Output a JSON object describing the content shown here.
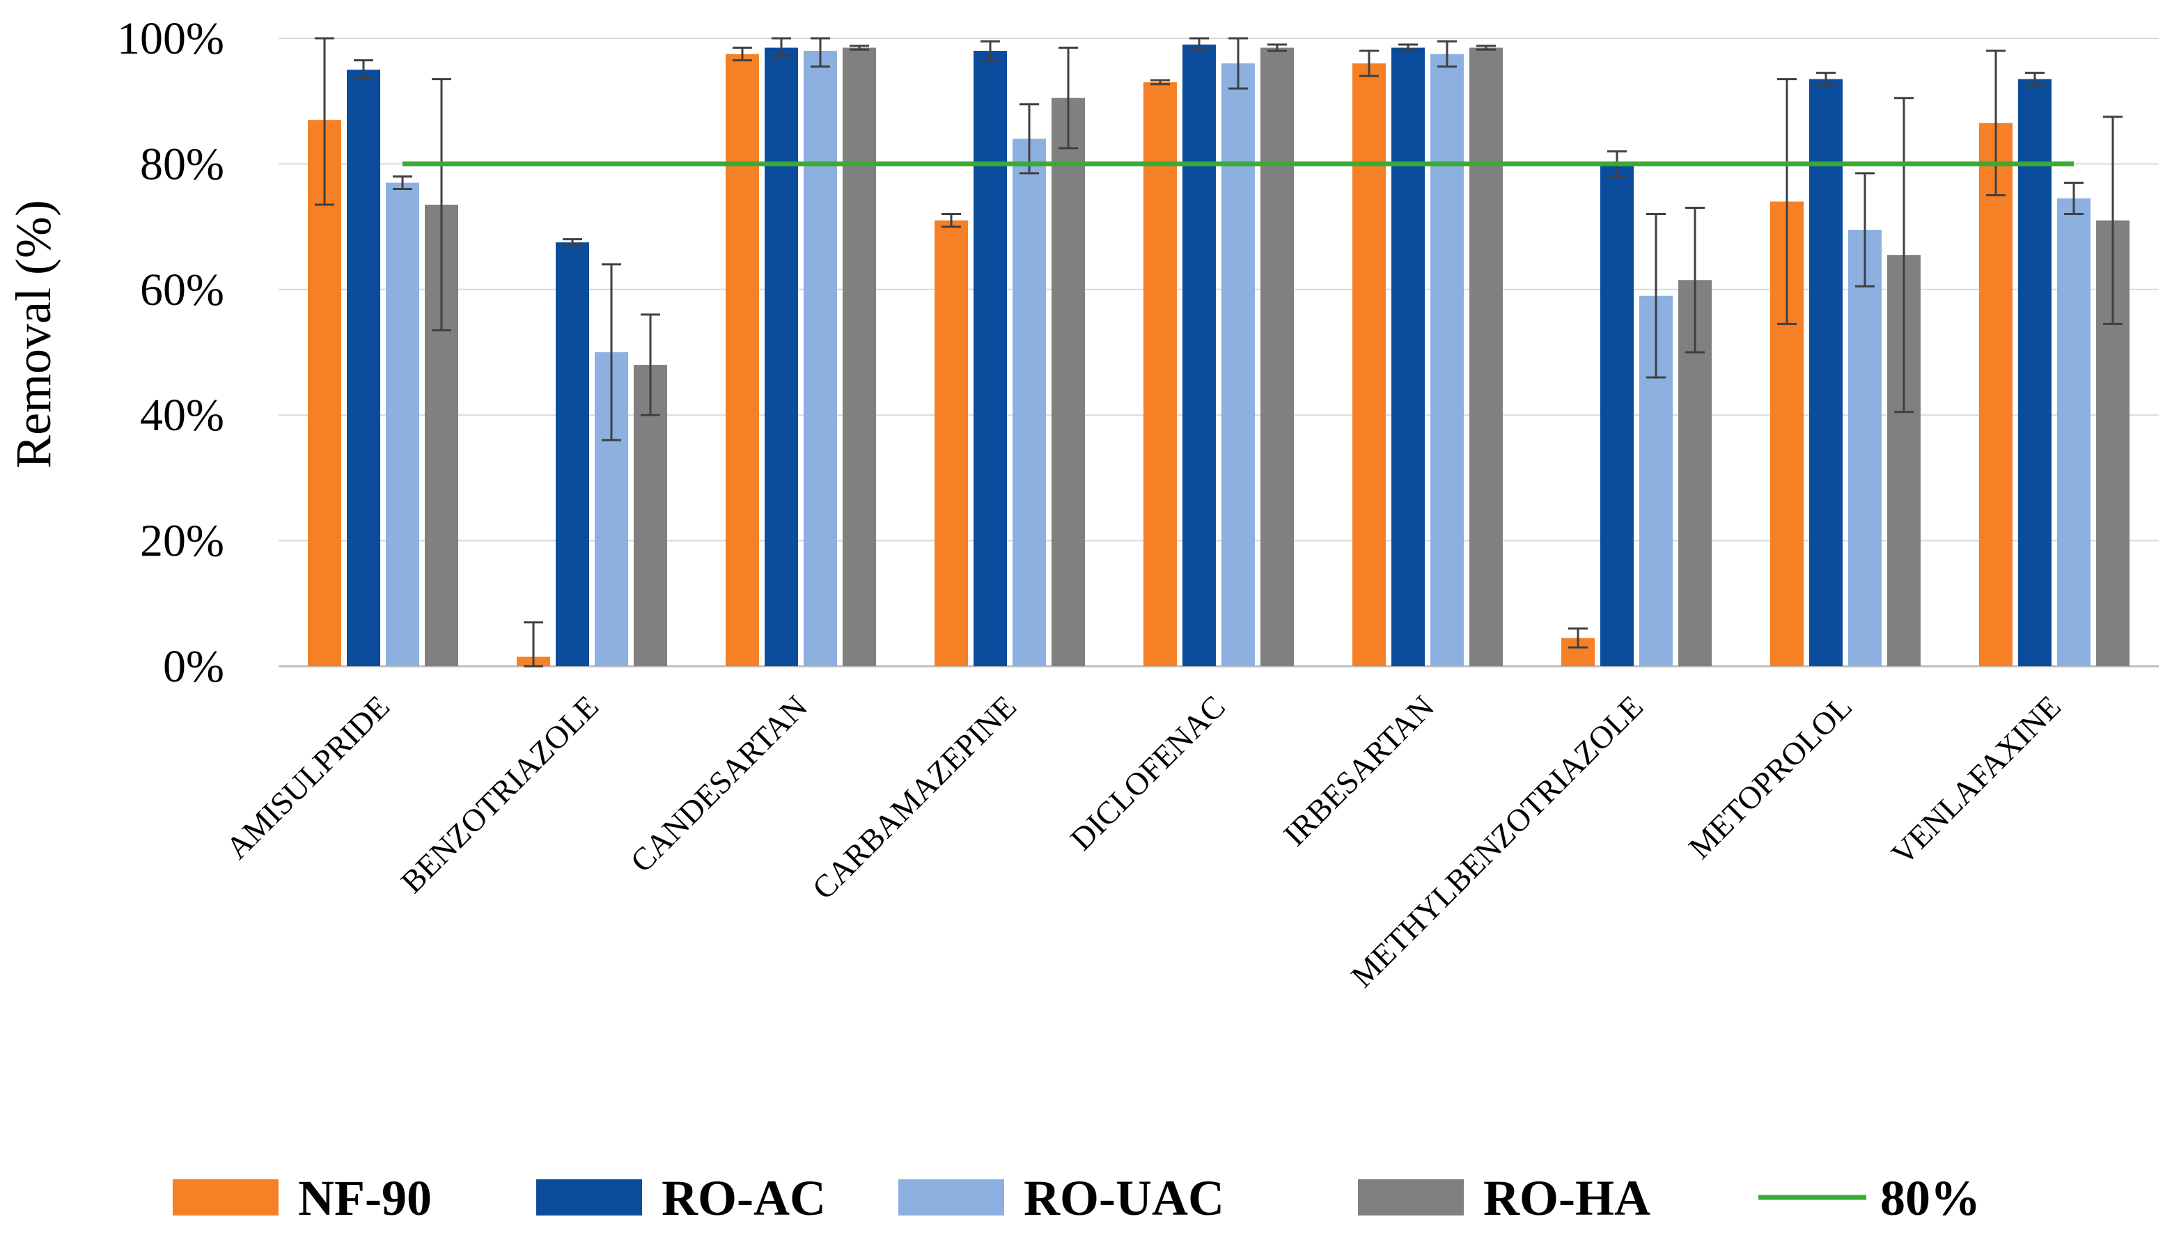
{
  "chart_data": {
    "type": "bar",
    "title": "",
    "xlabel": "",
    "ylabel": "Removal (%)",
    "ylim": [
      0,
      100
    ],
    "yticks": [
      0,
      20,
      40,
      60,
      80,
      100
    ],
    "ytick_labels": [
      "0%",
      "20%",
      "40%",
      "60%",
      "80%",
      "100%"
    ],
    "grid": true,
    "legend_position": "bottom",
    "categories": [
      "AMISULPRIDE",
      "BENZOTRIAZOLE",
      "CANDESARTAN",
      "CARBAMAZEPINE",
      "DICLOFENAC",
      "IRBESARTAN",
      "METHYLBENZOTRIAZOLE",
      "METOPROLOL",
      "VENLAFAXINE"
    ],
    "series": [
      {
        "name": "NF-90",
        "color": "#F58025",
        "values": [
          87,
          1.5,
          97.5,
          71,
          93,
          96,
          4.5,
          74,
          86.5
        ],
        "errors": [
          13.5,
          5.5,
          1,
          1,
          0.3,
          2,
          1.5,
          19.5,
          11.5
        ]
      },
      {
        "name": "RO-AC",
        "color": "#0B4C9C",
        "values": [
          95,
          67.5,
          98.5,
          98,
          99,
          98.5,
          80,
          93.5,
          93.5
        ],
        "errors": [
          1.5,
          0.5,
          1.5,
          1.5,
          1,
          0.5,
          2,
          1,
          1
        ]
      },
      {
        "name": "RO-UAC",
        "color": "#8CB0E0",
        "values": [
          77,
          50,
          98,
          84,
          96,
          97.5,
          59,
          69.5,
          74.5
        ],
        "errors": [
          1,
          14,
          2.5,
          5.5,
          4,
          2,
          13,
          9,
          2.5
        ]
      },
      {
        "name": "RO-HA",
        "color": "#808080",
        "values": [
          73.5,
          48,
          98.5,
          90.5,
          98.5,
          98.5,
          61.5,
          65.5,
          71
        ],
        "errors": [
          20,
          8,
          0.3,
          8,
          0.5,
          0.3,
          11.5,
          25,
          16.5
        ]
      }
    ],
    "reference_line": {
      "name": "80%",
      "value": 80,
      "color": "#3BAA35"
    }
  }
}
